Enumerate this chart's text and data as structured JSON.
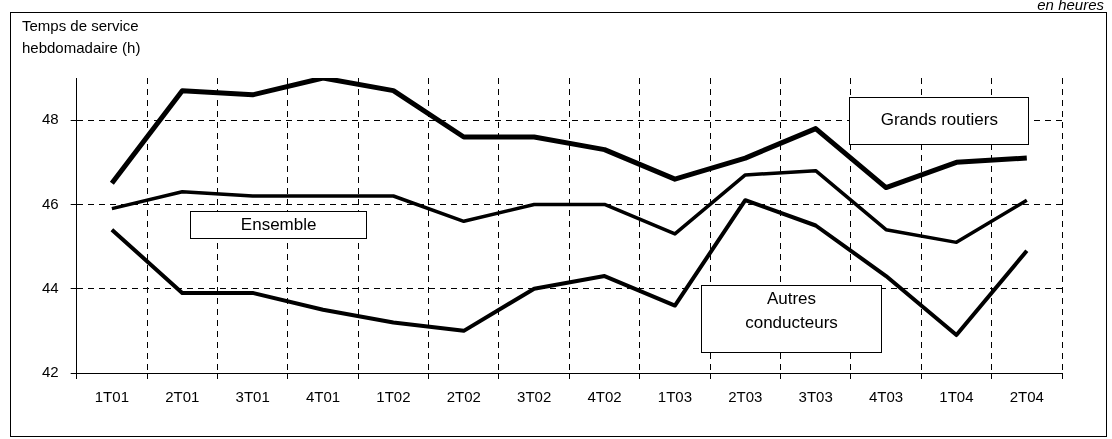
{
  "chart_data": {
    "type": "line",
    "ylabel": "Temps de service hebdomadaire (h)",
    "annotations": [
      "en heures"
    ],
    "categories": [
      "1T01",
      "2T01",
      "3T01",
      "4T01",
      "1T02",
      "2T02",
      "3T02",
      "4T02",
      "1T03",
      "2T03",
      "3T03",
      "4T03",
      "1T04",
      "2T04"
    ],
    "series": [
      {
        "name": "Grands routiers",
        "color": "#000000",
        "values": [
          46.5,
          48.7,
          48.6,
          49.0,
          48.7,
          47.6,
          47.6,
          47.3,
          46.6,
          47.1,
          47.8,
          46.4,
          47.0,
          47.1
        ]
      },
      {
        "name": "Ensemble",
        "color": "#000000",
        "values": [
          45.9,
          46.3,
          46.2,
          46.2,
          46.2,
          45.6,
          46.0,
          46.0,
          45.3,
          46.7,
          46.8,
          45.4,
          45.1,
          46.1
        ]
      },
      {
        "name": "Autres conducteurs",
        "color": "#000000",
        "values": [
          45.4,
          43.9,
          43.9,
          43.5,
          43.2,
          43.0,
          44.0,
          44.3,
          43.6,
          46.1,
          45.5,
          44.3,
          42.9,
          44.9
        ]
      }
    ],
    "ylim": [
      42,
      49
    ],
    "yticks": [
      42,
      44,
      46,
      48
    ],
    "grid": true,
    "legend": false,
    "marker": "none",
    "line_style": "solid"
  }
}
